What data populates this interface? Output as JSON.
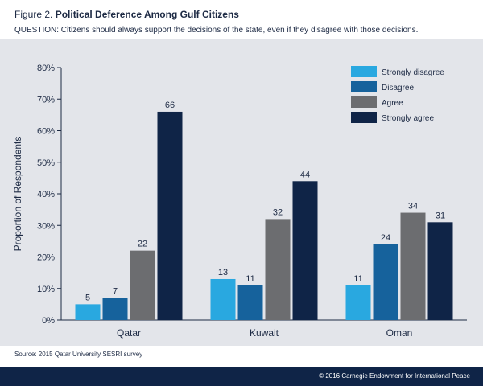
{
  "header": {
    "figure_label": "Figure 2.",
    "title": "Political Deference Among Gulf Citizens",
    "question": "QUESTION: Citizens should always support the decisions of the state, even if they disagree with those decisions."
  },
  "chart_data": {
    "type": "bar",
    "categories": [
      "Qatar",
      "Kuwait",
      "Oman"
    ],
    "series": [
      {
        "name": "Strongly disagree",
        "values": [
          5,
          13,
          11
        ],
        "color": "#29a8e0"
      },
      {
        "name": "Disagree",
        "values": [
          7,
          11,
          24
        ],
        "color": "#16629c"
      },
      {
        "name": "Agree",
        "values": [
          22,
          32,
          34
        ],
        "color": "#6c6d70"
      },
      {
        "name": "Strongly agree",
        "values": [
          66,
          44,
          31
        ],
        "color": "#0f2447"
      }
    ],
    "ylabel": "Proportion of Respondents",
    "xlabel": "",
    "ylim": [
      0,
      80
    ],
    "yticks": [
      "0%",
      "10%",
      "20%",
      "30%",
      "40%",
      "50%",
      "60%",
      "70%",
      "80%"
    ],
    "grid": false,
    "legend_position": "top-right"
  },
  "source": "Source: 2015 Qatar University SESRI survey",
  "footer": {
    "copyright": "© 2016 Carnegie Endowment for International Peace"
  }
}
